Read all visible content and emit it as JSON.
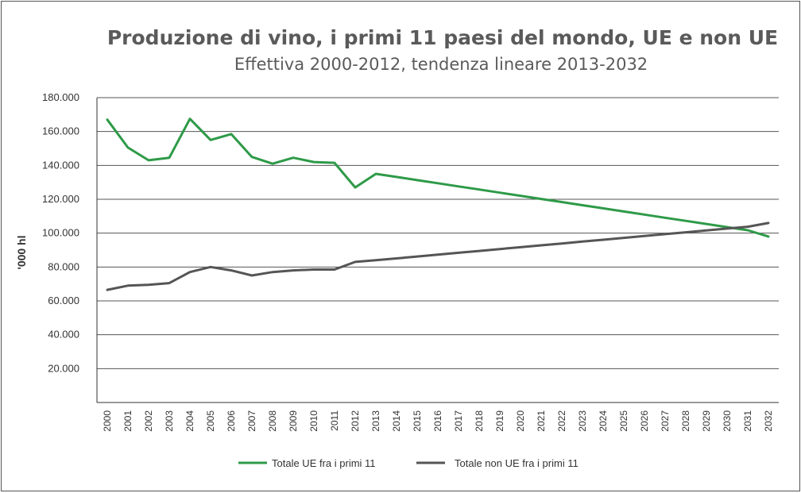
{
  "chart_data": {
    "type": "line",
    "title": "Produzione di vino, i primi 11 paesi del mondo, UE e non UE",
    "subtitle": "Effettiva 2000-2012, tendenza lineare 2013-2032",
    "ylabel": "'000 hl",
    "xlabel": "",
    "ylim": [
      0,
      180000
    ],
    "yticks": [
      20000,
      40000,
      60000,
      80000,
      100000,
      120000,
      140000,
      160000,
      180000
    ],
    "ytick_labels": [
      "20.000",
      "40.000",
      "60.000",
      "80.000",
      "100.000",
      "120.000",
      "140.000",
      "160.000",
      "180.000"
    ],
    "grid": "horizontal",
    "legend_position": "bottom",
    "x": [
      "2000",
      "2001",
      "2002",
      "2003",
      "2004",
      "2005",
      "2006",
      "2007",
      "2008",
      "2009",
      "2010",
      "2011",
      "2012",
      "2013",
      "2014",
      "2015",
      "2016",
      "2017",
      "2018",
      "2019",
      "2020",
      "2021",
      "2022",
      "2023",
      "2024",
      "2025",
      "2026",
      "2027",
      "2028",
      "2029",
      "2030",
      "2031",
      "2032"
    ],
    "series": [
      {
        "name": "Totale UE fra i primi 11",
        "color": "#2e9a48",
        "values": [
          167000,
          150500,
          143000,
          144500,
          167500,
          155000,
          158500,
          145000,
          141000,
          144500,
          142000,
          141500,
          127000,
          135000,
          133150,
          131300,
          129450,
          127600,
          125750,
          123900,
          122050,
          120200,
          118350,
          116500,
          114650,
          112800,
          110950,
          109100,
          107250,
          105400,
          103550,
          101700,
          98000
        ]
      },
      {
        "name": "Totale non UE fra i primi 11",
        "color": "#555555",
        "values": [
          66500,
          69000,
          69500,
          70500,
          77000,
          80000,
          78000,
          75000,
          77000,
          78000,
          78500,
          78500,
          83000,
          84000,
          85100,
          86200,
          87300,
          88400,
          89500,
          90600,
          91700,
          92800,
          93900,
          95000,
          96100,
          97200,
          98300,
          99400,
          100500,
          101600,
          102700,
          103800,
          106000
        ]
      }
    ]
  }
}
